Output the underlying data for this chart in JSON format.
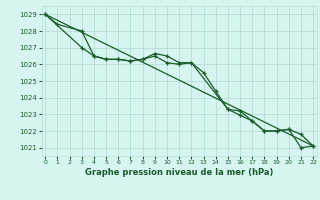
{
  "title": "Graphe pression niveau de la mer (hPa)",
  "background_color": "#d6f5f0",
  "grid_color": "#b8ddd8",
  "line_color": "#1a5c2a",
  "x_values": [
    0,
    1,
    2,
    3,
    4,
    5,
    6,
    7,
    8,
    9,
    10,
    11,
    12,
    13,
    14,
    15,
    16,
    17,
    18,
    19,
    20,
    21,
    22
  ],
  "line1_x": [
    0,
    1,
    3,
    4,
    5,
    6,
    7,
    8,
    9,
    10,
    11,
    12,
    15,
    16,
    17,
    18,
    19,
    20,
    21,
    22
  ],
  "line1_y": [
    1029.0,
    1028.4,
    1028.0,
    1026.5,
    1026.3,
    1026.3,
    1026.2,
    1026.3,
    1026.5,
    1026.1,
    1026.0,
    1026.1,
    1023.3,
    1023.2,
    1022.6,
    1022.0,
    1022.0,
    1022.1,
    1021.8,
    1021.1
  ],
  "line2_x": [
    0,
    3,
    4,
    5,
    6,
    7,
    8,
    9,
    10,
    11,
    12,
    13,
    14,
    15,
    16,
    17,
    18,
    19,
    20,
    21,
    22
  ],
  "line2_y": [
    1029.0,
    1027.0,
    1026.5,
    1026.3,
    1026.3,
    1026.2,
    1026.3,
    1026.65,
    1026.5,
    1026.1,
    1026.1,
    1025.5,
    1024.4,
    1023.3,
    1022.95,
    1022.6,
    1022.0,
    1022.0,
    1022.1,
    1021.0,
    1021.1
  ],
  "line3_x": [
    0,
    22
  ],
  "line3_y": [
    1029.0,
    1021.1
  ],
  "ylim": [
    1020.5,
    1029.5
  ],
  "yticks": [
    1021,
    1022,
    1023,
    1024,
    1025,
    1026,
    1027,
    1028,
    1029
  ],
  "xlim": [
    -0.3,
    22.3
  ],
  "xticks": [
    0,
    1,
    2,
    3,
    4,
    5,
    6,
    7,
    8,
    9,
    10,
    11,
    12,
    13,
    14,
    15,
    16,
    17,
    18,
    19,
    20,
    21,
    22
  ]
}
